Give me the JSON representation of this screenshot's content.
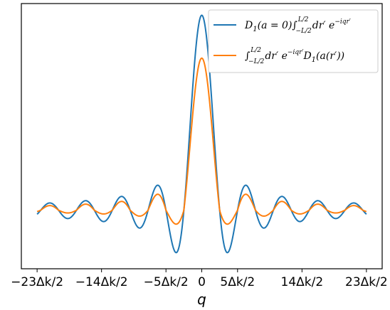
{
  "chart_data": {
    "type": "line",
    "xlabel": "q",
    "ylabel": "",
    "title": "",
    "xlim": [
      -23,
      23
    ],
    "x_unit": "Δk/2",
    "xticks": [
      {
        "value": -23,
        "label": "−23Δk/2"
      },
      {
        "value": -14,
        "label": "−14Δk/2"
      },
      {
        "value": -5,
        "label": "−5Δk/2"
      },
      {
        "value": 0,
        "label": "0"
      },
      {
        "value": 5,
        "label": "5Δk/2"
      },
      {
        "value": 14,
        "label": "14Δk/2"
      },
      {
        "value": 23,
        "label": "23Δk/2"
      }
    ],
    "yticks": [],
    "grid": false,
    "legend_position": "top-right",
    "series": [
      {
        "name": "D1(a=0) ∫_{-L/2}^{L/2} dr′ e^{-iqr′}",
        "color": "#1f77b4",
        "peak": 1.0,
        "first_min": -0.22,
        "form": "sinc"
      },
      {
        "name": "∫_{-L/2}^{L/2} dr′ e^{-iqr′} D1(a(r′))",
        "color": "#ff7f0e",
        "peak": 0.78,
        "first_min": -0.08,
        "form": "damped-sinc"
      }
    ],
    "ylim": [
      -0.3,
      1.06
    ]
  },
  "legend": {
    "entry1_main": "D",
    "entry1_sub": "1",
    "entry1_rest": "(a = 0)∫",
    "entry1_upper": "L/2",
    "entry1_lower": "−L/2",
    "entry1_tail": "dr′ e",
    "entry1_exp": "−iqr′",
    "entry2_int": "∫",
    "entry2_upper": "L/2",
    "entry2_lower": "−L/2",
    "entry2_mid": "dr′ e",
    "entry2_exp": "−iqr′",
    "entry2_d": "D",
    "entry2_sub": "1",
    "entry2_tail": "(a(r′))"
  }
}
